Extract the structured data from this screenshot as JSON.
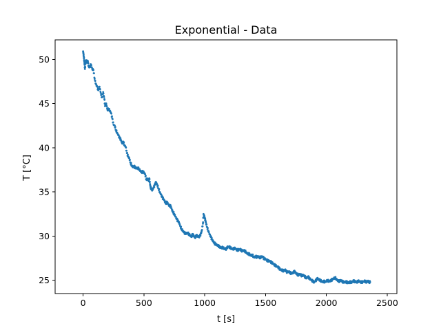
{
  "chart_data": {
    "type": "scatter",
    "title": "Exponential - Data",
    "xlabel": "t [s]",
    "ylabel": "T [°C]",
    "xlim": [
      -230,
      2580
    ],
    "ylim": [
      23.5,
      52.2
    ],
    "xticks": [
      0,
      500,
      1000,
      1500,
      2000,
      2500
    ],
    "yticks": [
      25,
      30,
      35,
      40,
      45,
      50
    ],
    "grid": false,
    "legend": "none",
    "series": [
      {
        "color": "#1f77b4",
        "points": [
          [
            0,
            50.9
          ],
          [
            3,
            50.6
          ],
          [
            6,
            50.3
          ],
          [
            9,
            49.9
          ],
          [
            12,
            49.4
          ],
          [
            15,
            48.9
          ],
          [
            20,
            49.5
          ],
          [
            25,
            49.9
          ],
          [
            30,
            49.7
          ],
          [
            40,
            49.8
          ],
          [
            45,
            49.2
          ],
          [
            55,
            49.1
          ],
          [
            65,
            49.4
          ],
          [
            75,
            48.9
          ],
          [
            85,
            48.8
          ],
          [
            95,
            47.8
          ],
          [
            105,
            47.2
          ],
          [
            115,
            46.9
          ],
          [
            125,
            46.5
          ],
          [
            135,
            46.9
          ],
          [
            145,
            46.2
          ],
          [
            155,
            45.7
          ],
          [
            165,
            46.3
          ],
          [
            175,
            45.5
          ],
          [
            180,
            44.7
          ],
          [
            190,
            45.0
          ],
          [
            200,
            44.3
          ],
          [
            210,
            44.4
          ],
          [
            220,
            44.2
          ],
          [
            230,
            43.9
          ],
          [
            240,
            43.3
          ],
          [
            250,
            42.6
          ],
          [
            260,
            42.5
          ],
          [
            270,
            42.0
          ],
          [
            280,
            41.7
          ],
          [
            290,
            41.4
          ],
          [
            300,
            41.1
          ],
          [
            310,
            40.9
          ],
          [
            320,
            40.5
          ],
          [
            330,
            40.7
          ],
          [
            340,
            40.3
          ],
          [
            350,
            40.1
          ],
          [
            360,
            39.4
          ],
          [
            370,
            39.0
          ],
          [
            380,
            38.8
          ],
          [
            390,
            38.3
          ],
          [
            400,
            38.0
          ],
          [
            410,
            37.8
          ],
          [
            420,
            37.9
          ],
          [
            430,
            37.7
          ],
          [
            440,
            37.7
          ],
          [
            450,
            37.7
          ],
          [
            460,
            37.6
          ],
          [
            470,
            37.4
          ],
          [
            480,
            37.2
          ],
          [
            490,
            37.3
          ],
          [
            500,
            37.2
          ],
          [
            510,
            37.0
          ],
          [
            520,
            36.4
          ],
          [
            530,
            36.5
          ],
          [
            540,
            36.2
          ],
          [
            545,
            36.5
          ],
          [
            550,
            35.9
          ],
          [
            555,
            35.5
          ],
          [
            560,
            35.4
          ],
          [
            570,
            35.2
          ],
          [
            580,
            35.5
          ],
          [
            590,
            35.8
          ],
          [
            600,
            36.1
          ],
          [
            610,
            35.8
          ],
          [
            620,
            35.4
          ],
          [
            630,
            35.0
          ],
          [
            640,
            34.7
          ],
          [
            650,
            34.4
          ],
          [
            660,
            34.2
          ],
          [
            670,
            34.0
          ],
          [
            680,
            33.7
          ],
          [
            690,
            33.9
          ],
          [
            700,
            33.6
          ],
          [
            710,
            33.4
          ],
          [
            720,
            33.4
          ],
          [
            730,
            33.0
          ],
          [
            740,
            32.7
          ],
          [
            750,
            32.5
          ],
          [
            760,
            32.2
          ],
          [
            770,
            31.9
          ],
          [
            780,
            31.7
          ],
          [
            790,
            31.5
          ],
          [
            800,
            31.1
          ],
          [
            810,
            30.8
          ],
          [
            820,
            30.6
          ],
          [
            830,
            30.4
          ],
          [
            840,
            30.3
          ],
          [
            850,
            30.3
          ],
          [
            860,
            30.4
          ],
          [
            870,
            30.2
          ],
          [
            880,
            30.1
          ],
          [
            890,
            29.9
          ],
          [
            900,
            30.2
          ],
          [
            910,
            30.0
          ],
          [
            920,
            29.8
          ],
          [
            930,
            30.1
          ],
          [
            940,
            30.0
          ],
          [
            950,
            29.9
          ],
          [
            960,
            30.0
          ],
          [
            970,
            30.3
          ],
          [
            975,
            30.6
          ],
          [
            985,
            31.4
          ],
          [
            990,
            32.5
          ],
          [
            995,
            32.3
          ],
          [
            1000,
            32.0
          ],
          [
            1005,
            31.8
          ],
          [
            1010,
            31.5
          ],
          [
            1020,
            31.0
          ],
          [
            1030,
            30.6
          ],
          [
            1040,
            30.2
          ],
          [
            1050,
            29.9
          ],
          [
            1060,
            29.6
          ],
          [
            1070,
            29.4
          ],
          [
            1080,
            29.2
          ],
          [
            1090,
            29.1
          ],
          [
            1100,
            29.0
          ],
          [
            1110,
            28.9
          ],
          [
            1120,
            28.8
          ],
          [
            1130,
            28.7
          ],
          [
            1140,
            28.7
          ],
          [
            1150,
            28.7
          ],
          [
            1160,
            28.6
          ],
          [
            1170,
            28.5
          ],
          [
            1180,
            28.6
          ],
          [
            1190,
            28.8
          ],
          [
            1200,
            28.8
          ],
          [
            1210,
            28.7
          ],
          [
            1220,
            28.6
          ],
          [
            1230,
            28.5
          ],
          [
            1240,
            28.6
          ],
          [
            1250,
            28.6
          ],
          [
            1260,
            28.5
          ],
          [
            1270,
            28.4
          ],
          [
            1280,
            28.5
          ],
          [
            1290,
            28.5
          ],
          [
            1300,
            28.4
          ],
          [
            1310,
            28.3
          ],
          [
            1320,
            28.4
          ],
          [
            1330,
            28.3
          ],
          [
            1340,
            28.2
          ],
          [
            1350,
            28.0
          ],
          [
            1360,
            28.0
          ],
          [
            1370,
            27.9
          ],
          [
            1380,
            27.8
          ],
          [
            1390,
            27.9
          ],
          [
            1400,
            27.7
          ],
          [
            1410,
            27.6
          ],
          [
            1420,
            27.7
          ],
          [
            1430,
            27.6
          ],
          [
            1440,
            27.7
          ],
          [
            1450,
            27.6
          ],
          [
            1460,
            27.6
          ],
          [
            1470,
            27.7
          ],
          [
            1480,
            27.6
          ],
          [
            1490,
            27.4
          ],
          [
            1500,
            27.4
          ],
          [
            1510,
            27.3
          ],
          [
            1520,
            27.2
          ],
          [
            1530,
            27.2
          ],
          [
            1540,
            27.1
          ],
          [
            1550,
            27.0
          ],
          [
            1560,
            26.9
          ],
          [
            1570,
            26.8
          ],
          [
            1580,
            26.7
          ],
          [
            1590,
            26.6
          ],
          [
            1600,
            26.5
          ],
          [
            1610,
            26.4
          ],
          [
            1620,
            26.2
          ],
          [
            1630,
            26.2
          ],
          [
            1640,
            26.1
          ],
          [
            1650,
            26.1
          ],
          [
            1660,
            26.2
          ],
          [
            1670,
            26.0
          ],
          [
            1680,
            25.9
          ],
          [
            1690,
            26.0
          ],
          [
            1700,
            25.9
          ],
          [
            1710,
            25.8
          ],
          [
            1720,
            25.8
          ],
          [
            1730,
            25.9
          ],
          [
            1740,
            26.0
          ],
          [
            1750,
            25.8
          ],
          [
            1760,
            25.7
          ],
          [
            1770,
            25.6
          ],
          [
            1780,
            25.7
          ],
          [
            1790,
            25.6
          ],
          [
            1800,
            25.5
          ],
          [
            1810,
            25.6
          ],
          [
            1820,
            25.5
          ],
          [
            1830,
            25.3
          ],
          [
            1840,
            25.3
          ],
          [
            1850,
            25.4
          ],
          [
            1860,
            25.2
          ],
          [
            1870,
            25.1
          ],
          [
            1880,
            25.0
          ],
          [
            1890,
            24.9
          ],
          [
            1900,
            24.8
          ],
          [
            1910,
            24.9
          ],
          [
            1920,
            25.1
          ],
          [
            1930,
            25.2
          ],
          [
            1940,
            25.1
          ],
          [
            1950,
            25.0
          ],
          [
            1960,
            24.9
          ],
          [
            1970,
            24.8
          ],
          [
            1980,
            24.9
          ],
          [
            1990,
            24.8
          ],
          [
            2000,
            24.9
          ],
          [
            2010,
            25.0
          ],
          [
            2020,
            24.9
          ],
          [
            2030,
            24.9
          ],
          [
            2040,
            25.0
          ],
          [
            2050,
            25.1
          ],
          [
            2060,
            25.2
          ],
          [
            2070,
            25.3
          ],
          [
            2080,
            25.2
          ],
          [
            2090,
            25.0
          ],
          [
            2100,
            24.9
          ],
          [
            2110,
            24.9
          ],
          [
            2120,
            25.0
          ],
          [
            2130,
            24.9
          ],
          [
            2140,
            24.8
          ],
          [
            2150,
            24.8
          ],
          [
            2160,
            24.8
          ],
          [
            2170,
            24.8
          ],
          [
            2180,
            24.7
          ],
          [
            2190,
            24.8
          ],
          [
            2200,
            24.8
          ],
          [
            2210,
            24.8
          ],
          [
            2220,
            24.9
          ],
          [
            2230,
            24.9
          ],
          [
            2240,
            24.8
          ],
          [
            2250,
            24.8
          ],
          [
            2260,
            24.9
          ],
          [
            2270,
            24.9
          ],
          [
            2280,
            24.8
          ],
          [
            2290,
            24.8
          ],
          [
            2300,
            24.8
          ],
          [
            2310,
            24.9
          ],
          [
            2320,
            24.9
          ],
          [
            2330,
            24.8
          ],
          [
            2340,
            24.9
          ],
          [
            2350,
            24.8
          ],
          [
            2360,
            24.8
          ]
        ]
      }
    ]
  }
}
